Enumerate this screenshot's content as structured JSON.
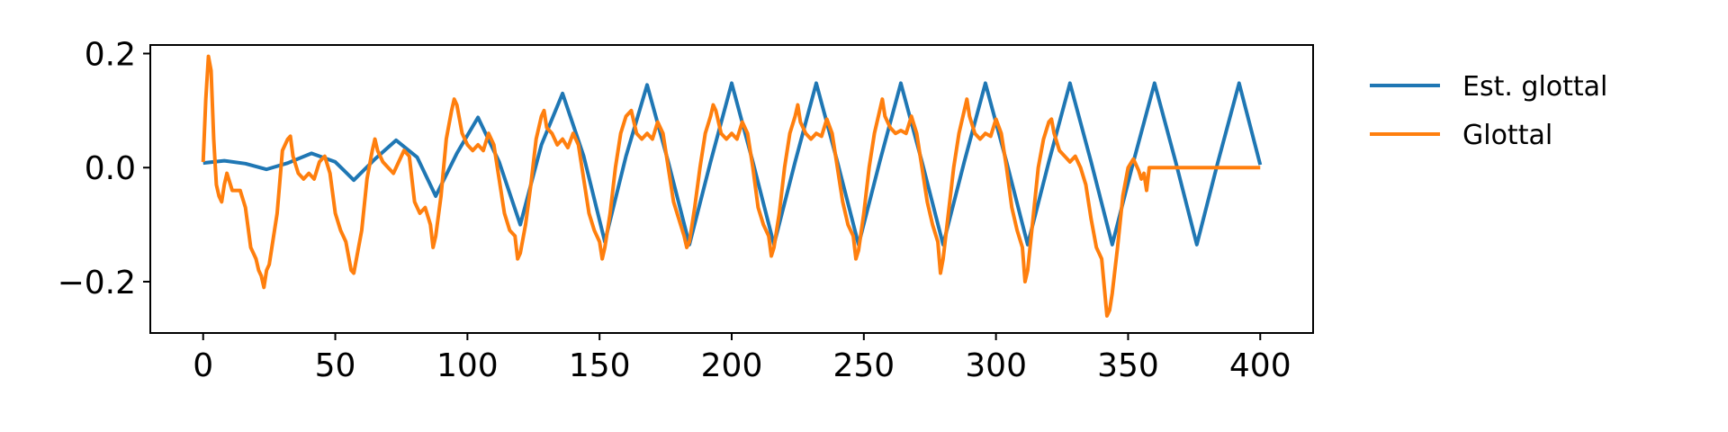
{
  "chart_data": {
    "type": "line",
    "title": "",
    "xlabel": "",
    "ylabel": "",
    "xlim": [
      -20,
      420
    ],
    "ylim": [
      -0.29,
      0.215
    ],
    "xticks": [
      0,
      50,
      100,
      150,
      200,
      250,
      300,
      350,
      400
    ],
    "xtick_labels": [
      "0",
      "50",
      "100",
      "150",
      "200",
      "250",
      "300",
      "350",
      "400"
    ],
    "yticks": [
      0.2,
      0.0,
      -0.2
    ],
    "ytick_labels": [
      "0.2",
      "0.0",
      "−0.2"
    ],
    "grid": false,
    "legend_position": "outside-right-top",
    "series": [
      {
        "name": "Est. glottal",
        "color": "#1f77b4",
        "points": [
          [
            0,
            0.008
          ],
          [
            8,
            0.012
          ],
          [
            16,
            0.007
          ],
          [
            24,
            -0.003
          ],
          [
            32,
            0.008
          ],
          [
            41,
            0.025
          ],
          [
            50,
            0.01
          ],
          [
            57,
            -0.022
          ],
          [
            65,
            0.015
          ],
          [
            73,
            0.048
          ],
          [
            81,
            0.018
          ],
          [
            88,
            -0.05
          ],
          [
            96,
            0.025
          ],
          [
            104,
            0.088
          ],
          [
            112,
            0.01
          ],
          [
            120,
            -0.1
          ],
          [
            128,
            0.04
          ],
          [
            136,
            0.13
          ],
          [
            144,
            0.02
          ],
          [
            152,
            -0.13
          ],
          [
            160,
            0.02
          ],
          [
            168,
            0.145
          ],
          [
            176,
            0.01
          ],
          [
            184,
            -0.135
          ],
          [
            192,
            0.01
          ],
          [
            200,
            0.148
          ],
          [
            208,
            0.01
          ],
          [
            216,
            -0.135
          ],
          [
            224,
            0.01
          ],
          [
            232,
            0.148
          ],
          [
            240,
            0.01
          ],
          [
            248,
            -0.135
          ],
          [
            256,
            0.01
          ],
          [
            264,
            0.148
          ],
          [
            272,
            0.01
          ],
          [
            280,
            -0.135
          ],
          [
            288,
            0.01
          ],
          [
            296,
            0.148
          ],
          [
            304,
            0.01
          ],
          [
            312,
            -0.135
          ],
          [
            320,
            0.01
          ],
          [
            328,
            0.148
          ],
          [
            336,
            0.01
          ],
          [
            344,
            -0.135
          ],
          [
            352,
            0.01
          ],
          [
            360,
            0.148
          ],
          [
            368,
            0.01
          ],
          [
            376,
            -0.135
          ],
          [
            384,
            0.01
          ],
          [
            392,
            0.148
          ],
          [
            400,
            0.005
          ]
        ]
      },
      {
        "name": "Glottal",
        "color": "#ff7f0e",
        "points": [
          [
            0,
            0.01
          ],
          [
            1,
            0.12
          ],
          [
            2,
            0.195
          ],
          [
            3,
            0.17
          ],
          [
            4,
            0.05
          ],
          [
            5,
            -0.03
          ],
          [
            6,
            -0.05
          ],
          [
            7,
            -0.06
          ],
          [
            8,
            -0.03
          ],
          [
            9,
            -0.01
          ],
          [
            10,
            -0.025
          ],
          [
            11,
            -0.04
          ],
          [
            12,
            -0.04
          ],
          [
            14,
            -0.04
          ],
          [
            16,
            -0.07
          ],
          [
            18,
            -0.14
          ],
          [
            20,
            -0.16
          ],
          [
            21,
            -0.18
          ],
          [
            22,
            -0.19
          ],
          [
            23,
            -0.21
          ],
          [
            24,
            -0.18
          ],
          [
            25,
            -0.17
          ],
          [
            26,
            -0.14
          ],
          [
            28,
            -0.08
          ],
          [
            30,
            0.03
          ],
          [
            32,
            0.05
          ],
          [
            33,
            0.055
          ],
          [
            34,
            0.02
          ],
          [
            36,
            -0.01
          ],
          [
            38,
            -0.02
          ],
          [
            40,
            -0.01
          ],
          [
            42,
            -0.02
          ],
          [
            44,
            0.01
          ],
          [
            46,
            0.02
          ],
          [
            48,
            -0.01
          ],
          [
            50,
            -0.08
          ],
          [
            52,
            -0.11
          ],
          [
            54,
            -0.13
          ],
          [
            56,
            -0.18
          ],
          [
            57,
            -0.185
          ],
          [
            58,
            -0.16
          ],
          [
            60,
            -0.11
          ],
          [
            62,
            -0.02
          ],
          [
            64,
            0.03
          ],
          [
            65,
            0.05
          ],
          [
            66,
            0.03
          ],
          [
            68,
            0.01
          ],
          [
            70,
            0.0
          ],
          [
            72,
            -0.01
          ],
          [
            74,
            0.01
          ],
          [
            76,
            0.03
          ],
          [
            78,
            0.02
          ],
          [
            80,
            -0.06
          ],
          [
            82,
            -0.08
          ],
          [
            84,
            -0.07
          ],
          [
            86,
            -0.1
          ],
          [
            87,
            -0.14
          ],
          [
            88,
            -0.12
          ],
          [
            90,
            -0.05
          ],
          [
            92,
            0.05
          ],
          [
            94,
            0.1
          ],
          [
            95,
            0.12
          ],
          [
            96,
            0.11
          ],
          [
            98,
            0.06
          ],
          [
            100,
            0.04
          ],
          [
            102,
            0.03
          ],
          [
            104,
            0.04
          ],
          [
            106,
            0.03
          ],
          [
            108,
            0.06
          ],
          [
            110,
            0.04
          ],
          [
            112,
            -0.02
          ],
          [
            114,
            -0.08
          ],
          [
            116,
            -0.11
          ],
          [
            118,
            -0.12
          ],
          [
            119,
            -0.16
          ],
          [
            120,
            -0.15
          ],
          [
            122,
            -0.1
          ],
          [
            124,
            -0.03
          ],
          [
            126,
            0.05
          ],
          [
            128,
            0.09
          ],
          [
            129,
            0.1
          ],
          [
            130,
            0.07
          ],
          [
            132,
            0.06
          ],
          [
            134,
            0.04
          ],
          [
            136,
            0.05
          ],
          [
            138,
            0.035
          ],
          [
            140,
            0.06
          ],
          [
            142,
            0.04
          ],
          [
            144,
            -0.02
          ],
          [
            146,
            -0.08
          ],
          [
            148,
            -0.11
          ],
          [
            150,
            -0.13
          ],
          [
            151,
            -0.16
          ],
          [
            152,
            -0.14
          ],
          [
            154,
            -0.08
          ],
          [
            156,
            0.0
          ],
          [
            158,
            0.06
          ],
          [
            160,
            0.09
          ],
          [
            162,
            0.1
          ],
          [
            164,
            0.06
          ],
          [
            166,
            0.05
          ],
          [
            168,
            0.06
          ],
          [
            170,
            0.05
          ],
          [
            172,
            0.08
          ],
          [
            174,
            0.06
          ],
          [
            176,
            0.0
          ],
          [
            178,
            -0.06
          ],
          [
            180,
            -0.09
          ],
          [
            182,
            -0.12
          ],
          [
            183,
            -0.14
          ],
          [
            184,
            -0.13
          ],
          [
            186,
            -0.07
          ],
          [
            188,
            0.0
          ],
          [
            190,
            0.06
          ],
          [
            192,
            0.09
          ],
          [
            193,
            0.11
          ],
          [
            194,
            0.1
          ],
          [
            196,
            0.06
          ],
          [
            198,
            0.05
          ],
          [
            200,
            0.06
          ],
          [
            202,
            0.05
          ],
          [
            204,
            0.08
          ],
          [
            206,
            0.06
          ],
          [
            208,
            0.0
          ],
          [
            210,
            -0.07
          ],
          [
            212,
            -0.1
          ],
          [
            214,
            -0.12
          ],
          [
            215,
            -0.155
          ],
          [
            216,
            -0.14
          ],
          [
            218,
            -0.08
          ],
          [
            220,
            0.0
          ],
          [
            222,
            0.06
          ],
          [
            224,
            0.09
          ],
          [
            225,
            0.11
          ],
          [
            226,
            0.08
          ],
          [
            228,
            0.06
          ],
          [
            230,
            0.05
          ],
          [
            232,
            0.06
          ],
          [
            234,
            0.055
          ],
          [
            236,
            0.085
          ],
          [
            238,
            0.06
          ],
          [
            240,
            0.0
          ],
          [
            242,
            -0.06
          ],
          [
            244,
            -0.1
          ],
          [
            246,
            -0.12
          ],
          [
            247,
            -0.16
          ],
          [
            248,
            -0.145
          ],
          [
            250,
            -0.08
          ],
          [
            252,
            0.0
          ],
          [
            254,
            0.06
          ],
          [
            256,
            0.1
          ],
          [
            257,
            0.12
          ],
          [
            258,
            0.09
          ],
          [
            260,
            0.07
          ],
          [
            262,
            0.06
          ],
          [
            264,
            0.065
          ],
          [
            266,
            0.06
          ],
          [
            268,
            0.09
          ],
          [
            270,
            0.06
          ],
          [
            272,
            0.0
          ],
          [
            274,
            -0.06
          ],
          [
            276,
            -0.1
          ],
          [
            278,
            -0.13
          ],
          [
            279,
            -0.185
          ],
          [
            280,
            -0.16
          ],
          [
            282,
            -0.08
          ],
          [
            284,
            0.0
          ],
          [
            286,
            0.06
          ],
          [
            288,
            0.1
          ],
          [
            289,
            0.12
          ],
          [
            290,
            0.09
          ],
          [
            292,
            0.06
          ],
          [
            294,
            0.05
          ],
          [
            296,
            0.06
          ],
          [
            298,
            0.055
          ],
          [
            300,
            0.085
          ],
          [
            302,
            0.06
          ],
          [
            304,
            0.0
          ],
          [
            306,
            -0.07
          ],
          [
            308,
            -0.11
          ],
          [
            310,
            -0.14
          ],
          [
            311,
            -0.2
          ],
          [
            312,
            -0.18
          ],
          [
            314,
            -0.09
          ],
          [
            316,
            0.0
          ],
          [
            318,
            0.05
          ],
          [
            320,
            0.08
          ],
          [
            321,
            0.085
          ],
          [
            322,
            0.06
          ],
          [
            324,
            0.03
          ],
          [
            326,
            0.02
          ],
          [
            328,
            0.01
          ],
          [
            330,
            0.02
          ],
          [
            332,
            0.0
          ],
          [
            334,
            -0.03
          ],
          [
            336,
            -0.09
          ],
          [
            338,
            -0.14
          ],
          [
            340,
            -0.16
          ],
          [
            341,
            -0.21
          ],
          [
            342,
            -0.26
          ],
          [
            343,
            -0.25
          ],
          [
            344,
            -0.22
          ],
          [
            346,
            -0.14
          ],
          [
            348,
            -0.05
          ],
          [
            350,
            0.0
          ],
          [
            352,
            0.015
          ],
          [
            354,
            -0.005
          ],
          [
            355,
            -0.02
          ],
          [
            356,
            -0.01
          ],
          [
            357,
            -0.04
          ],
          [
            358,
            0.0
          ],
          [
            360,
            0.0
          ],
          [
            380,
            0.0
          ],
          [
            400,
            0.0
          ]
        ]
      }
    ]
  }
}
